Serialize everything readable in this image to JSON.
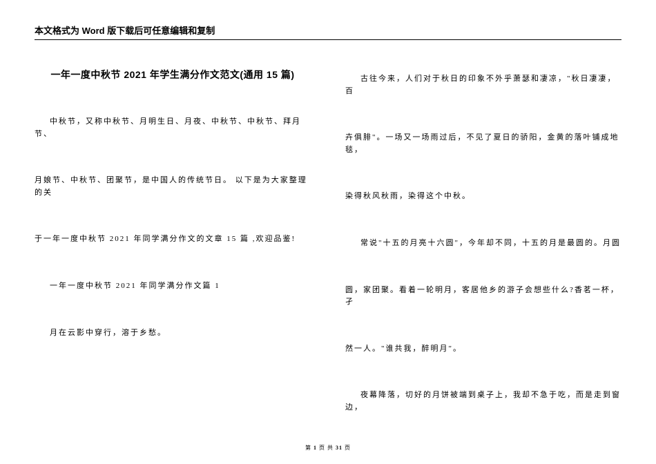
{
  "header": {
    "notice": "本文格式为 Word 版下载后可任意编辑和复制"
  },
  "document": {
    "title": "一年一度中秋节 2021 年学生满分作文范文(通用 15 篇)",
    "left_paragraphs": [
      "中秋节，又称中秋节、月明生日、月夜、中秋节、中秋节、拜月节、",
      "月娘节、中秋节、团聚节，是中国人的传统节日。 以下是为大家整理的关",
      "于一年一度中秋节 2021 年同学满分作文的文章 15 篇 ,欢迎品鉴!",
      "一年一度中秋节 2021 年同学满分作文篇 1",
      "月在云影中穿行，溶于乡愁。"
    ],
    "right_paragraphs": [
      "古往今来，人们对于秋日的印象不外乎萧瑟和凄凉，\"秋日凄凄，百",
      "卉俱腓\"。一场又一场雨过后，不见了夏日的骄阳，金黄的落叶铺成地毯，",
      "染得秋风秋雨，染得这个中秋。",
      "常说\"十五的月亮十六圆\"，今年却不同，十五的月是最圆的。月圆",
      "圆，家团聚。看着一轮明月，客居他乡的游子会想些什么?香茗一杯，孑",
      "然一人。\"谁共我，醉明月\"。",
      "夜幕降落，切好的月饼被端到桌子上，我却不急于吃，而是走到窗边，"
    ]
  },
  "footer": {
    "prefix": "第",
    "current": "1",
    "mid": "页 共",
    "total": "31",
    "suffix": "页"
  }
}
